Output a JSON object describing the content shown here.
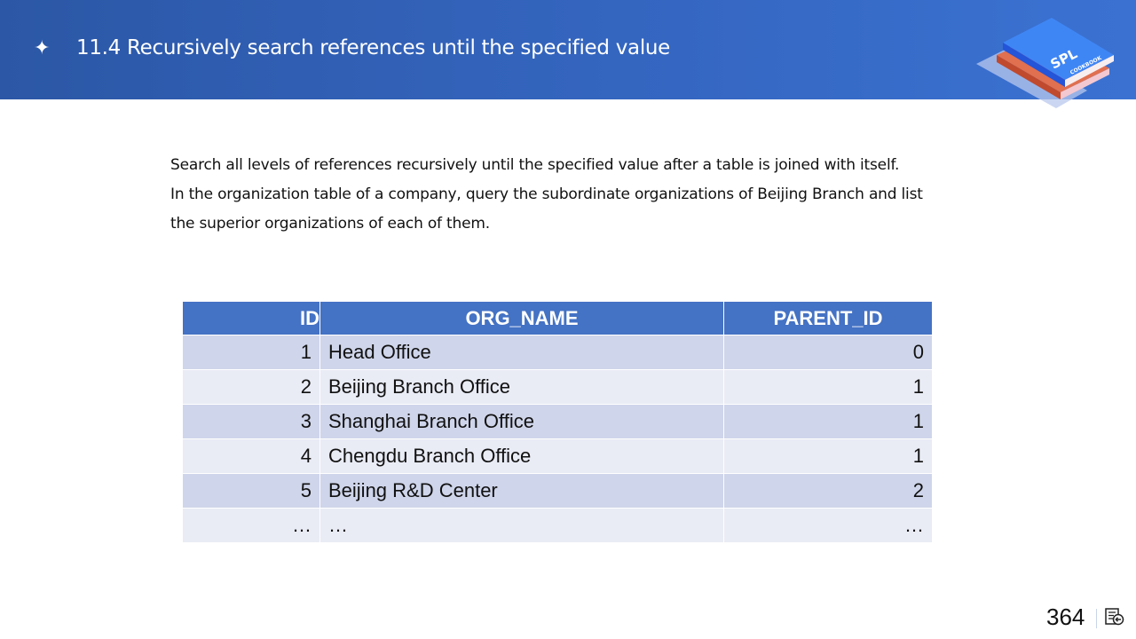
{
  "header": {
    "title": "11.4 Recursively search references until the specified value",
    "bullet_icon": "four-point-star-icon"
  },
  "logo": {
    "text": "SPL",
    "subtext": "COOKBOOK"
  },
  "description": [
    "Search all levels of references recursively until the specified value after a table is joined with itself.",
    "In the organization table of a company, query the subordinate organizations of Beijing Branch and list",
    "the superior organizations of each of them."
  ],
  "table": {
    "columns": [
      "ID",
      "ORG_NAME",
      "PARENT_ID"
    ],
    "rows": [
      [
        "1",
        "Head Office",
        "0"
      ],
      [
        "2",
        "Beijing Branch Office",
        "1"
      ],
      [
        "3",
        "Shanghai Branch Office",
        "1"
      ],
      [
        "4",
        "Chengdu Branch Office",
        "1"
      ],
      [
        "5",
        "Beijing R&D Center",
        "2"
      ],
      [
        "…",
        "…",
        "…"
      ]
    ]
  },
  "footer": {
    "page_number": "364",
    "nav_icon": "return-to-contents-icon"
  },
  "colors": {
    "header": "#3567c2",
    "table_header": "#4472c4",
    "row_odd": "#cfd5ea",
    "row_even": "#e9ebf5"
  }
}
